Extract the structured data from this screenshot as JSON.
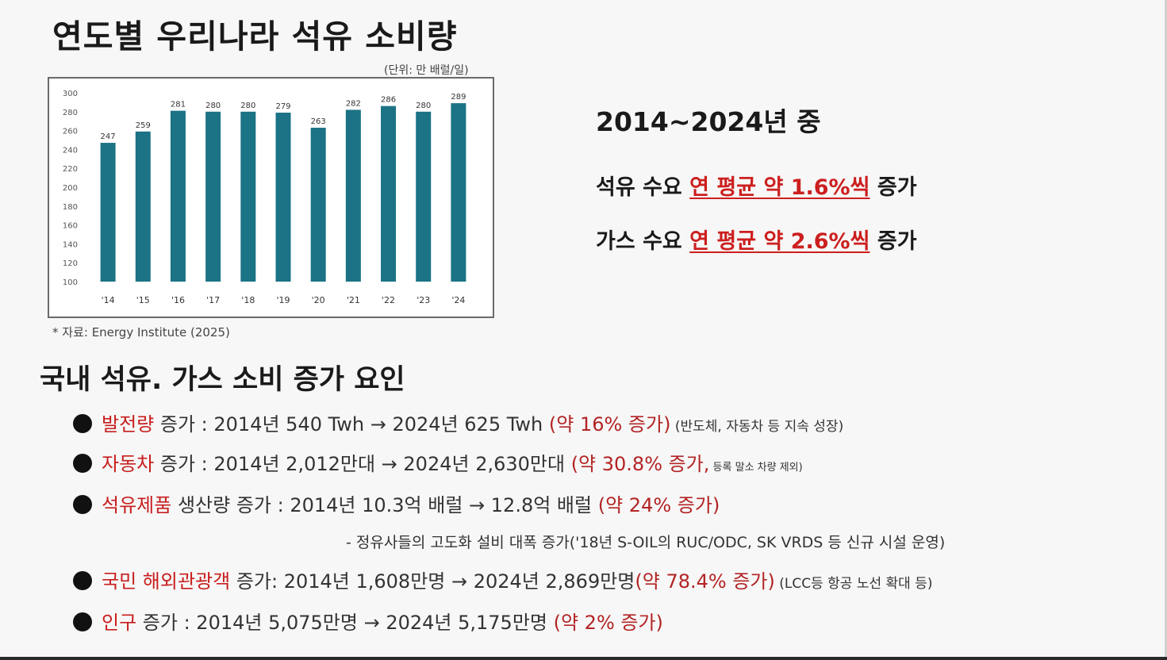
{
  "title": "연도별 우리나라 석유 소비량",
  "unit_note": "(단위: 만 배럴/일)",
  "source_note": "* 자료: Energy Institute (2025)",
  "chart_data": {
    "type": "bar",
    "categories": [
      "'14",
      "'15",
      "'16",
      "'17",
      "'18",
      "'19",
      "'20",
      "'21",
      "'22",
      "'23",
      "'24"
    ],
    "values": [
      247,
      259,
      281,
      280,
      280,
      279,
      263,
      282,
      286,
      280,
      289
    ],
    "data_labels": [
      "247",
      "259",
      "281",
      "280",
      "280",
      "279",
      "263",
      "282",
      "286",
      "280",
      "289"
    ],
    "y_ticks": [
      "300",
      "280",
      "260",
      "240",
      "220",
      "200",
      "180",
      "160",
      "140",
      "120",
      "100"
    ],
    "ylim": [
      100,
      300
    ],
    "xlabel": "",
    "ylabel": "",
    "grid": false,
    "bar_color": "#1b7385"
  },
  "summary": {
    "heading": "2014~2024년 중",
    "oil": {
      "lead": "석유 수요 ",
      "highlight": "연 평균 약 1.6%씩",
      "tail": " 증가"
    },
    "gas": {
      "lead": "가스 수요 ",
      "highlight": "연 평균 약 2.6%씩",
      "tail": " 증가"
    },
    "highlight_color": "#cc1f1f"
  },
  "factors": {
    "heading": "국내 석유. 가스 소비 증가 요인",
    "items": [
      {
        "term": "발전량",
        "text": " 증가 : 2014년 540 Twh → 2024년 625 Twh ",
        "change": "(약 16% 증가)",
        "note": " (반도체, 자동차 등 지속 성장)"
      },
      {
        "term": "자동차",
        "text": " 증가 : 2014년 2,012만대 → 2024년 2,630만대 ",
        "change": "(약 30.8% 증가,",
        "note": " 등록 말소 차량 제외)"
      },
      {
        "term": "석유제품",
        "text": " 생산량 증가 : 2014년 10.3억 배럴 → 12.8억 배럴 ",
        "change": "(약 24% 증가)",
        "note": ""
      },
      {
        "term": "국민 해외관광객",
        "text": "  증가: 2014년 1,608만명 → 2024년 2,869만명",
        "change": "(약 78.4% 증가)",
        "note": " (LCC등 항공 노선 확대 등)"
      },
      {
        "term": "인구",
        "text": " 증가 : 2014년 5,075만명 → 2024년 5,175만명 ",
        "change": "(약 2% 증가)",
        "note": ""
      }
    ],
    "subnote": "- 정유사들의 고도화 설비 대폭 증가('18년 S-OIL의 RUC/ODC, SK VRDS 등 신규 시설 운영)"
  }
}
